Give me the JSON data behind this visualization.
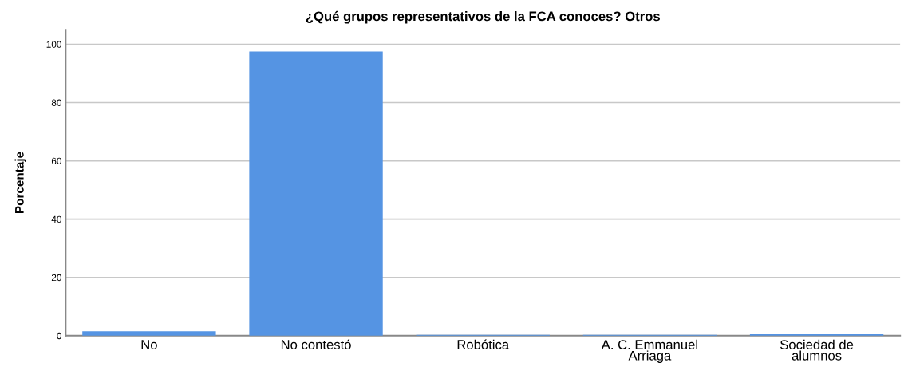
{
  "chart_data": {
    "type": "bar",
    "title": "¿Qué grupos representativos de la FCA conoces? Otros",
    "ylabel": "Porcentaje",
    "categories": [
      "No",
      "No contestó",
      "Robótica",
      "A. C. Emmanuel\nArriaga",
      "Sociedad de\nalumnos"
    ],
    "values": [
      1.5,
      97.5,
      0.3,
      0.3,
      0.8
    ],
    "color": "#5594e3",
    "ylim": [
      0,
      105
    ],
    "yticks": [
      0,
      20,
      40,
      60,
      80,
      100
    ],
    "grid": "y",
    "legend": false
  }
}
